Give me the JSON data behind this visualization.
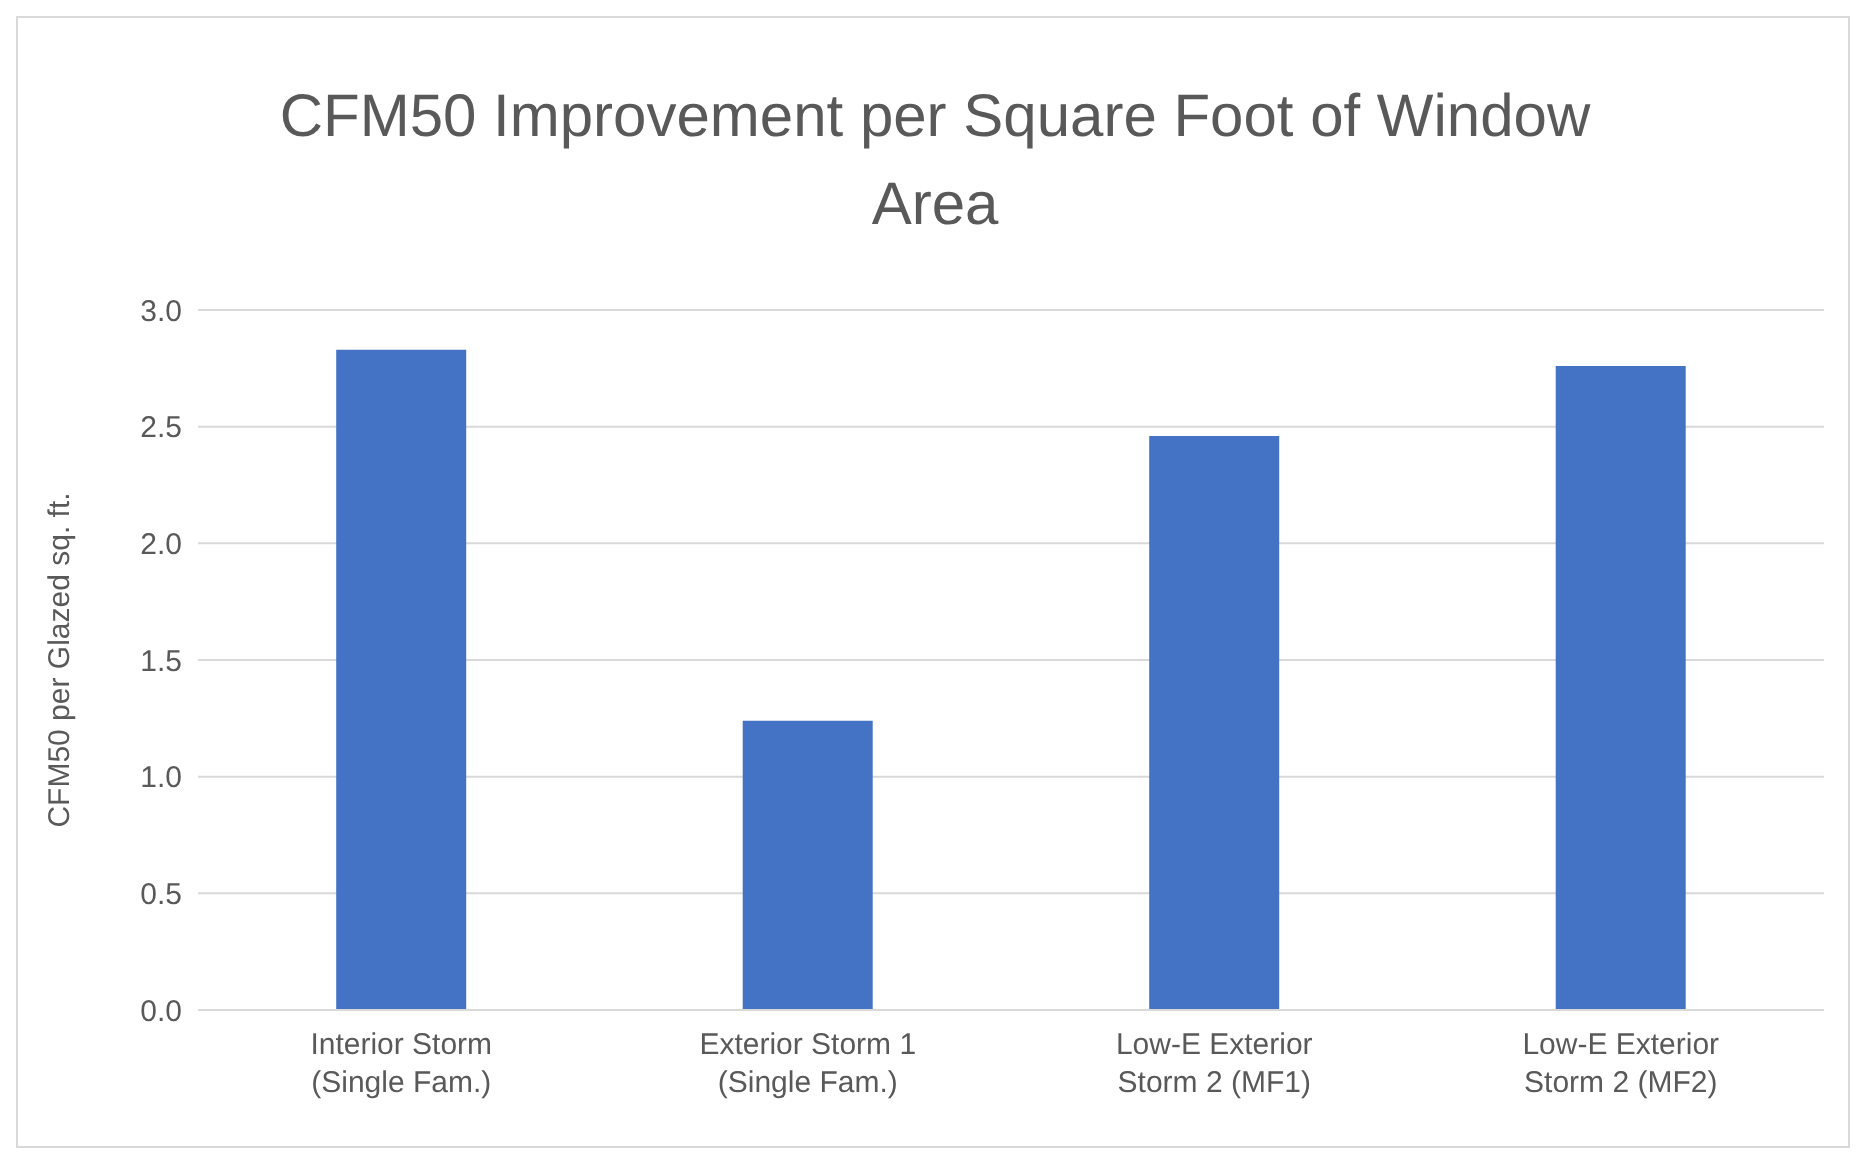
{
  "chart_data": {
    "type": "bar",
    "title": "CFM50 Improvement per Square Foot of Window Area",
    "ylabel": "CFM50 per Glazed sq. ft.",
    "categories": [
      "Interior Storm (Single Fam.)",
      "Exterior Storm 1 (Single Fam.)",
      "Low-E Exterior Storm 2 (MF1)",
      "Low-E Exterior Storm 2 (MF2)"
    ],
    "values": [
      2.83,
      1.24,
      2.46,
      2.76
    ],
    "color": "#4472c4",
    "ylim": [
      0,
      3
    ],
    "yticks": [
      {
        "value": 0,
        "label": "0.0"
      },
      {
        "value": 0.5,
        "label": "0.5"
      },
      {
        "value": 1,
        "label": "1.0"
      },
      {
        "value": 1.5,
        "label": "1.5"
      },
      {
        "value": 2,
        "label": "2.0"
      },
      {
        "value": 2.5,
        "label": "2.5"
      },
      {
        "value": 3,
        "label": "3.0"
      }
    ],
    "grid": "y",
    "legend": false
  }
}
